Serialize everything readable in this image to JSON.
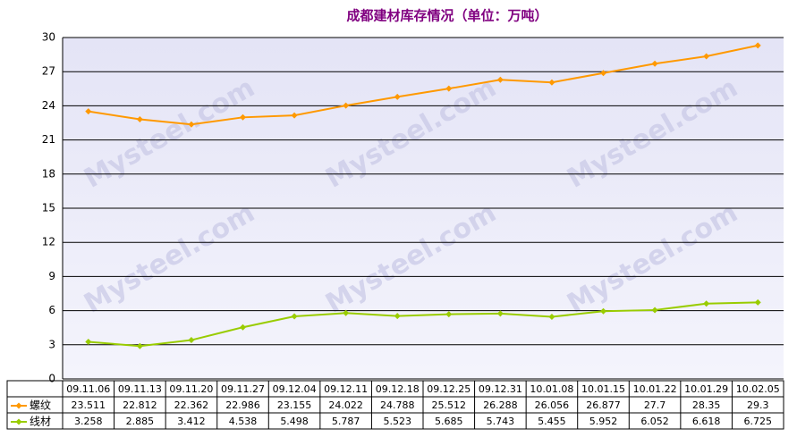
{
  "chart_data": {
    "type": "line",
    "title": "成都建材库存情况（单位：万吨）",
    "watermark": "Mysteel.com",
    "categories": [
      "09.11.06",
      "09.11.13",
      "09.11.20",
      "09.11.27",
      "09.12.04",
      "09.12.11",
      "09.12.18",
      "09.12.25",
      "09.12.31",
      "10.01.08",
      "10.01.15",
      "10.01.22",
      "10.01.29",
      "10.02.05"
    ],
    "series": [
      {
        "name": "螺纹",
        "color": "#ff9900",
        "values": [
          23.511,
          22.812,
          22.362,
          22.986,
          23.155,
          24.022,
          24.788,
          25.512,
          26.288,
          26.056,
          26.877,
          27.7,
          28.35,
          29.3
        ]
      },
      {
        "name": "线材",
        "color": "#99cc00",
        "values": [
          3.258,
          2.885,
          3.412,
          4.538,
          5.498,
          5.787,
          5.523,
          5.685,
          5.743,
          5.455,
          5.952,
          6.052,
          6.618,
          6.725
        ]
      }
    ],
    "ylim": [
      0,
      30
    ],
    "yticks": [
      0,
      3,
      6,
      9,
      12,
      15,
      18,
      21,
      24,
      27,
      30
    ],
    "grid": true
  }
}
